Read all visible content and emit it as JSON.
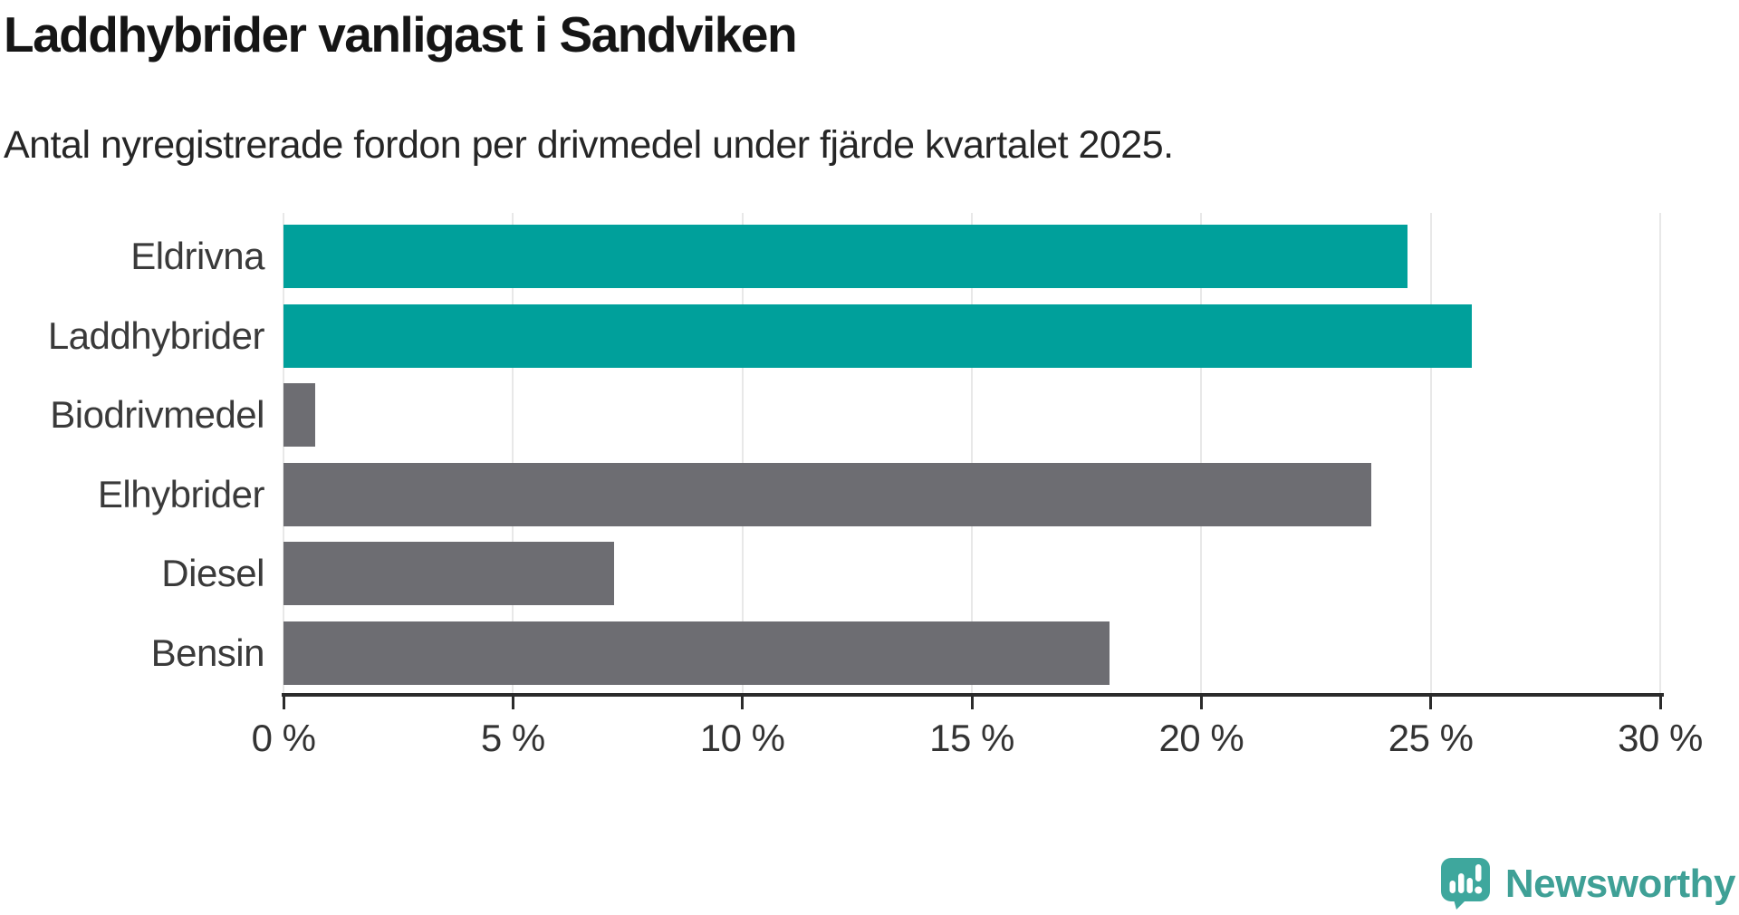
{
  "header": {
    "title": "Laddhybrider vanligast i Sandviken",
    "subtitle": "Antal nyregistrerade fordon per drivmedel under fjärde kvartalet 2025."
  },
  "chart_data": {
    "type": "bar",
    "orientation": "horizontal",
    "title": "Laddhybrider vanligast i Sandviken",
    "subtitle": "Antal nyregistrerade fordon per drivmedel under fjärde kvartalet 2025.",
    "categories": [
      "Eldrivna",
      "Laddhybrider",
      "Biodrivmedel",
      "Elhybrider",
      "Diesel",
      "Bensin"
    ],
    "values": [
      24.5,
      25.9,
      0.7,
      23.7,
      7.2,
      18.0
    ],
    "unit": "%",
    "bar_colors": [
      "#00a09b",
      "#00a09b",
      "#6d6d72",
      "#6d6d72",
      "#6d6d72",
      "#6d6d72"
    ],
    "highlight_color": "#00a09b",
    "default_color": "#6d6d72",
    "xlim": [
      0,
      30
    ],
    "x_ticks": [
      0,
      5,
      10,
      15,
      20,
      25,
      30
    ],
    "x_tick_labels": [
      "0 %",
      "5 %",
      "10 %",
      "15 %",
      "20 %",
      "25 %",
      "30 %"
    ],
    "xlabel": "",
    "ylabel": "",
    "grid": "vertical-only",
    "gridline_color": "#e8e8e8",
    "axis_color": "#2b2b2b",
    "label_color": "#3a3a3a",
    "legend": "none"
  },
  "footer": {
    "logo_text": "Newsworthy",
    "logo_text_color": "#3fa096",
    "logo_mark_color": "#3ea79d",
    "logo_bar_color": "#ffffff"
  }
}
